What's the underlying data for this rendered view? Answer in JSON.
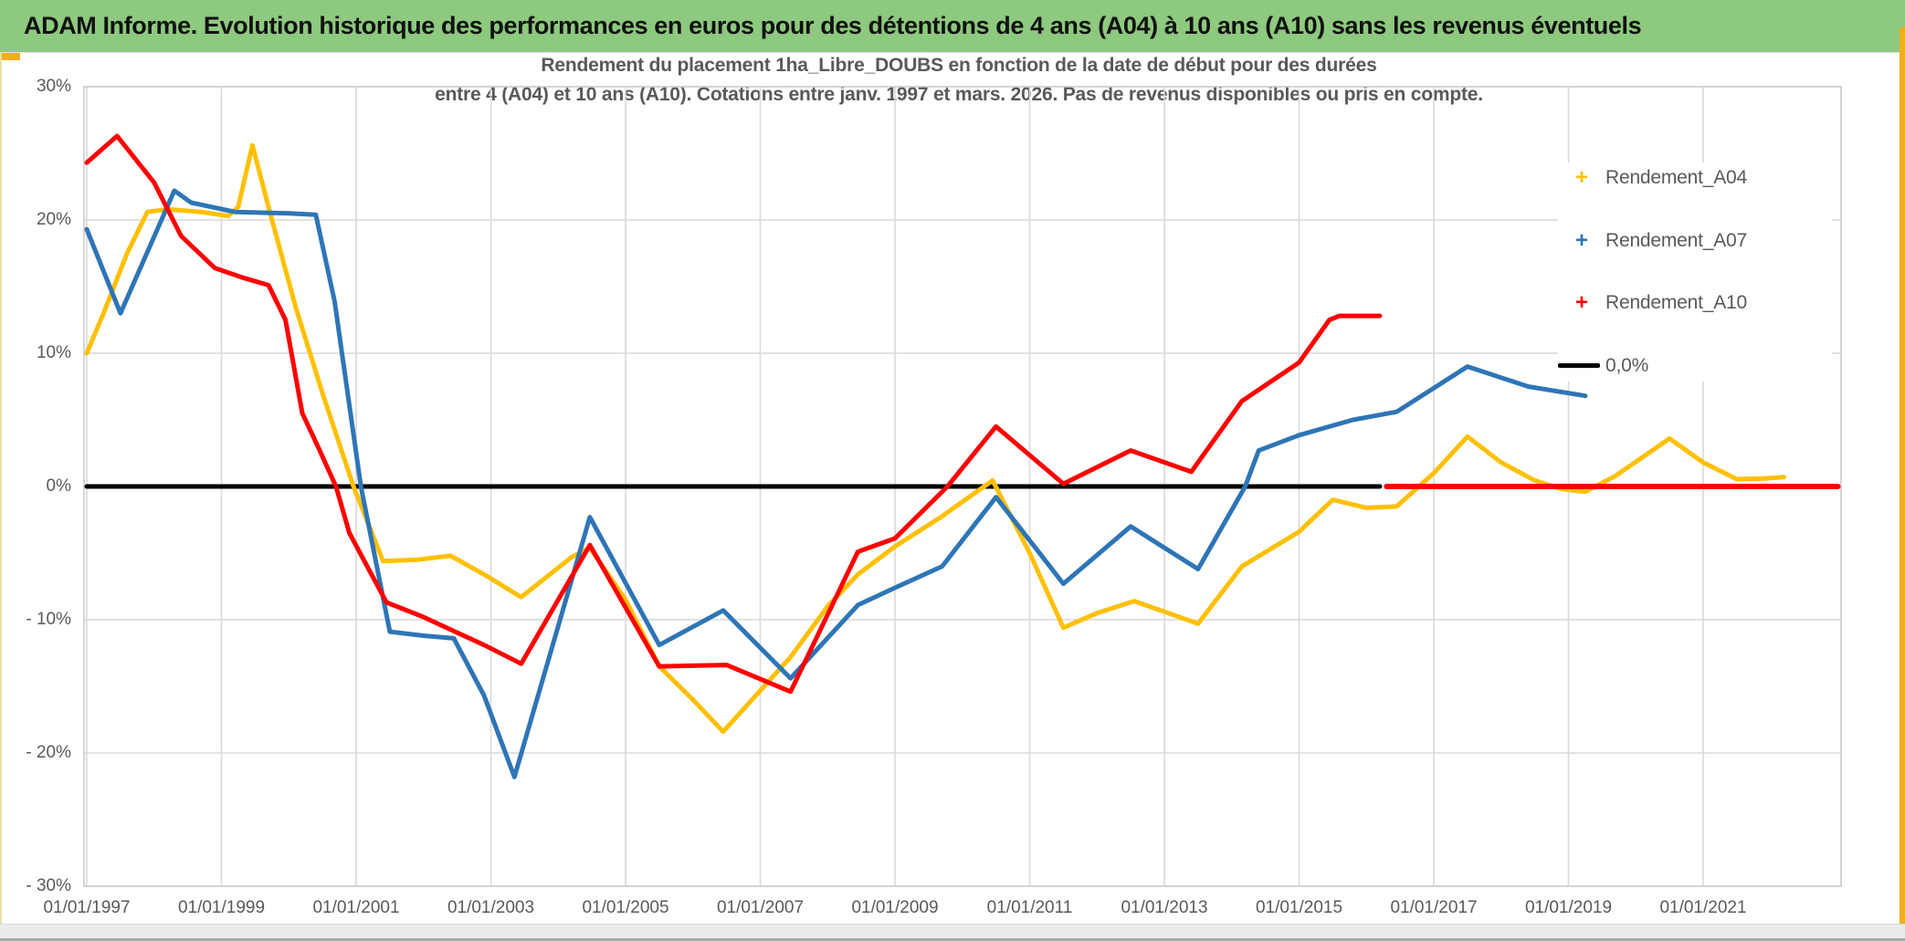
{
  "header": {
    "title": "ADAM Informe. Evolution historique des performances en euros pour des détentions de 4 ans (A04) à 10 ans (A10) sans les revenus éventuels",
    "bg_color": "#8DC97E",
    "accent_color": "#F2AE1C"
  },
  "chart": {
    "title_line1": "Rendement du placement 1ha_Libre_DOUBS en fonction de la date de début pour des durées",
    "title_line2": "entre 4 (A04) et 10 ans (A10). Cotations entre janv. 1997 et mars. 2026. Pas de revenus disponibles ou pris en compte.",
    "text_color": "#595959",
    "gridline_color": "#D9D9D9",
    "border_color": "#C9C9C9"
  },
  "chart_data": {
    "type": "line",
    "title": "Rendement du placement 1ha_Libre_DOUBS en fonction de la date de début pour des durées entre 4 (A04) et 10 ans (A10). Cotations entre janv. 1997 et mars. 2026. Pas de revenus disponibles ou pris en compte.",
    "xlabel": "",
    "ylabel": "",
    "x_range": [
      1997.0,
      2023.0
    ],
    "ylim": [
      -30,
      30
    ],
    "y_unit": "%",
    "grid": true,
    "legend_position": "inside-top-right",
    "y_ticks": [
      {
        "value": 30,
        "label": "30%"
      },
      {
        "value": 20,
        "label": "20%"
      },
      {
        "value": 10,
        "label": "10%"
      },
      {
        "value": 0,
        "label": "0%"
      },
      {
        "value": -10,
        "label": "- 10%"
      },
      {
        "value": -20,
        "label": "- 20%"
      },
      {
        "value": -30,
        "label": "- 30%"
      }
    ],
    "x_ticks": [
      {
        "value": 1997,
        "label": "01/01/1997"
      },
      {
        "value": 1999,
        "label": "01/01/1999"
      },
      {
        "value": 2001,
        "label": "01/01/2001"
      },
      {
        "value": 2003,
        "label": "01/01/2003"
      },
      {
        "value": 2005,
        "label": "01/01/2005"
      },
      {
        "value": 2007,
        "label": "01/01/2007"
      },
      {
        "value": 2009,
        "label": "01/01/2009"
      },
      {
        "value": 2011,
        "label": "01/01/2011"
      },
      {
        "value": 2013,
        "label": "01/01/2013"
      },
      {
        "value": 2015,
        "label": "01/01/2015"
      },
      {
        "value": 2017,
        "label": "01/01/2017"
      },
      {
        "value": 2019,
        "label": "01/01/2019"
      },
      {
        "value": 2021,
        "label": "01/01/2021"
      }
    ],
    "legend": [
      {
        "label": "Rendement_A04",
        "color": "#FFC000",
        "marker": "plus"
      },
      {
        "label": "Rendement_A07",
        "color": "#2E75B6",
        "marker": "plus"
      },
      {
        "label": "Rendement_A10",
        "color": "#FF0000",
        "marker": "plus"
      },
      {
        "label": "0,0%",
        "color": "#000000",
        "marker": "line"
      }
    ],
    "series": [
      {
        "name": "Rendement_A04",
        "color": "#FFC000",
        "width": 5,
        "points": [
          [
            1997.0,
            10.0
          ],
          [
            1997.25,
            13.0
          ],
          [
            1997.6,
            17.5
          ],
          [
            1997.9,
            20.6
          ],
          [
            1998.2,
            20.8
          ],
          [
            1998.7,
            20.6
          ],
          [
            1999.1,
            20.3
          ],
          [
            1999.25,
            21.0
          ],
          [
            1999.46,
            25.6
          ],
          [
            1999.75,
            20.0
          ],
          [
            2000.1,
            13.5
          ],
          [
            2000.5,
            7.0
          ],
          [
            2000.96,
            0.0
          ],
          [
            2001.4,
            -5.6
          ],
          [
            2001.9,
            -5.5
          ],
          [
            2002.4,
            -5.2
          ],
          [
            2002.9,
            -6.6
          ],
          [
            2003.45,
            -8.3
          ],
          [
            2004.2,
            -5.3
          ],
          [
            2004.47,
            -4.6
          ],
          [
            2005.0,
            -8.5
          ],
          [
            2005.5,
            -13.5
          ],
          [
            2006.0,
            -16.0
          ],
          [
            2006.45,
            -18.4
          ],
          [
            2007.45,
            -12.8
          ],
          [
            2008.0,
            -9.0
          ],
          [
            2008.45,
            -6.6
          ],
          [
            2009.0,
            -4.5
          ],
          [
            2009.68,
            -2.3
          ],
          [
            2010.45,
            0.45
          ],
          [
            2011.0,
            -5.0
          ],
          [
            2011.5,
            -10.6
          ],
          [
            2012.0,
            -9.5
          ],
          [
            2012.55,
            -8.6
          ],
          [
            2013.0,
            -9.4
          ],
          [
            2013.5,
            -10.3
          ],
          [
            2014.15,
            -6.0
          ],
          [
            2015.0,
            -3.4
          ],
          [
            2015.5,
            -1.0
          ],
          [
            2016.0,
            -1.6
          ],
          [
            2016.45,
            -1.5
          ],
          [
            2017.0,
            1.0
          ],
          [
            2017.5,
            3.75
          ],
          [
            2018.0,
            1.8
          ],
          [
            2018.5,
            0.45
          ],
          [
            2018.9,
            -0.2
          ],
          [
            2019.25,
            -0.4
          ],
          [
            2019.7,
            0.8
          ],
          [
            2020.1,
            2.2
          ],
          [
            2020.5,
            3.6
          ],
          [
            2021.0,
            1.8
          ],
          [
            2021.5,
            0.55
          ],
          [
            2021.9,
            0.6
          ],
          [
            2022.2,
            0.7
          ]
        ]
      },
      {
        "name": "Rendement_A07",
        "color": "#2E75B6",
        "width": 5,
        "points": [
          [
            1997.0,
            19.3
          ],
          [
            1997.5,
            13.0
          ],
          [
            1998.3,
            22.2
          ],
          [
            1998.55,
            21.3
          ],
          [
            1999.2,
            20.6
          ],
          [
            2000.0,
            20.5
          ],
          [
            2000.4,
            20.4
          ],
          [
            2000.68,
            13.9
          ],
          [
            2001.07,
            0.0
          ],
          [
            2001.5,
            -10.9
          ],
          [
            2002.0,
            -11.2
          ],
          [
            2002.45,
            -11.4
          ],
          [
            2002.9,
            -15.7
          ],
          [
            2003.35,
            -21.8
          ],
          [
            2004.47,
            -2.3
          ],
          [
            2005.5,
            -11.9
          ],
          [
            2006.45,
            -9.3
          ],
          [
            2007.45,
            -14.4
          ],
          [
            2008.45,
            -8.9
          ],
          [
            2009.0,
            -7.6
          ],
          [
            2009.7,
            -6.0
          ],
          [
            2010.5,
            -0.8
          ],
          [
            2011.5,
            -7.3
          ],
          [
            2012.5,
            -3.0
          ],
          [
            2013.5,
            -6.2
          ],
          [
            2014.2,
            0.0
          ],
          [
            2014.4,
            2.7
          ],
          [
            2015.0,
            3.85
          ],
          [
            2015.8,
            5.0
          ],
          [
            2016.45,
            5.6
          ],
          [
            2017.5,
            9.0
          ],
          [
            2018.4,
            7.5
          ],
          [
            2019.25,
            6.8
          ]
        ]
      },
      {
        "name": "Rendement_A10",
        "color": "#FF0000",
        "width": 5,
        "points": [
          [
            1997.0,
            24.3
          ],
          [
            1997.45,
            26.3
          ],
          [
            1998.0,
            22.8
          ],
          [
            1998.4,
            18.8
          ],
          [
            1998.9,
            16.4
          ],
          [
            1999.3,
            15.7
          ],
          [
            1999.7,
            15.1
          ],
          [
            1999.95,
            12.5
          ],
          [
            2000.2,
            5.5
          ],
          [
            2000.45,
            2.8
          ],
          [
            2000.7,
            0.0
          ],
          [
            2000.9,
            -3.5
          ],
          [
            2001.45,
            -8.7
          ],
          [
            2002.0,
            -9.8
          ],
          [
            2002.9,
            -11.9
          ],
          [
            2003.45,
            -13.3
          ],
          [
            2004.47,
            -4.4
          ],
          [
            2005.5,
            -13.5
          ],
          [
            2006.5,
            -13.4
          ],
          [
            2007.45,
            -15.4
          ],
          [
            2008.45,
            -4.9
          ],
          [
            2009.0,
            -3.9
          ],
          [
            2009.78,
            0.0
          ],
          [
            2010.5,
            4.5
          ],
          [
            2011.5,
            0.2
          ],
          [
            2012.5,
            2.7
          ],
          [
            2013.4,
            1.1
          ],
          [
            2014.15,
            6.4
          ],
          [
            2015.0,
            9.3
          ],
          [
            2015.45,
            12.5
          ],
          [
            2015.6,
            12.8
          ],
          [
            2016.2,
            12.8
          ]
        ]
      },
      {
        "name": "Rendement_A10_zero_segment",
        "color": "#FF0000",
        "width": 6,
        "points": [
          [
            2016.3,
            0.0
          ],
          [
            2023.0,
            0.0
          ]
        ]
      },
      {
        "name": "0,0%",
        "color": "#000000",
        "width": 5,
        "points": [
          [
            1997.0,
            0.0
          ],
          [
            2016.2,
            0.0
          ]
        ]
      }
    ]
  }
}
